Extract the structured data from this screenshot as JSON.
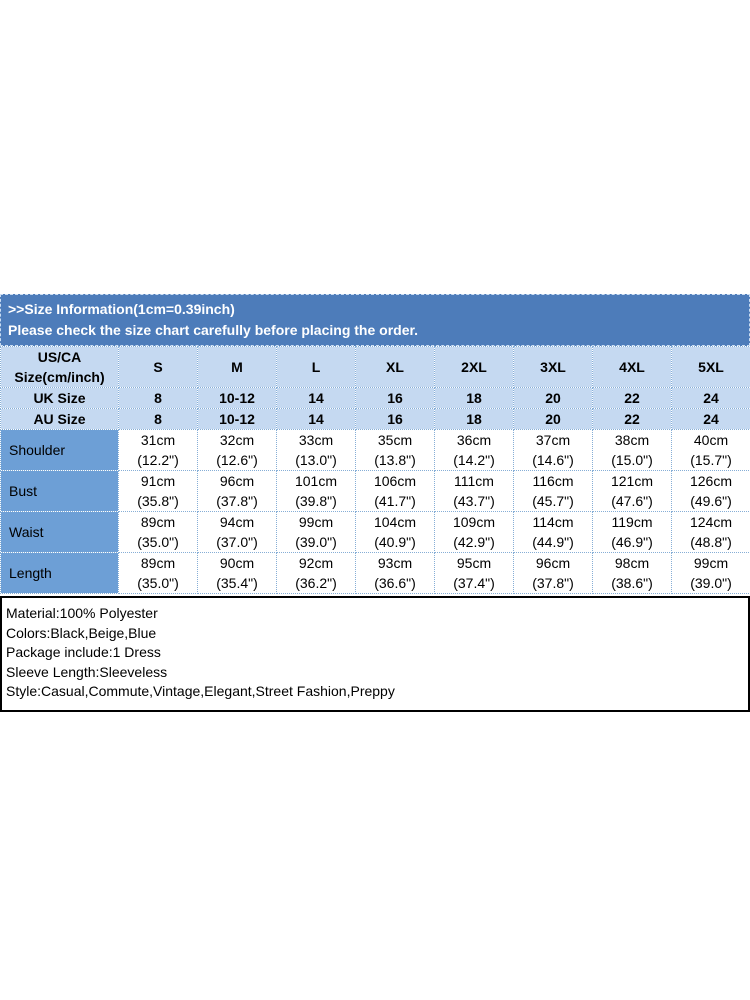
{
  "banner": {
    "line1": ">>Size Information(1cm=0.39inch)",
    "line2": "Please check the size chart carefully before placing the order."
  },
  "size_chart": {
    "corner_label": "US/CA\nSize(cm/inch)",
    "sizes": [
      "S",
      "M",
      "L",
      "XL",
      "2XL",
      "3XL",
      "4XL",
      "5XL"
    ],
    "uk_row": {
      "label": "UK Size",
      "values": [
        "8",
        "10-12",
        "14",
        "16",
        "18",
        "20",
        "22",
        "24"
      ]
    },
    "au_row": {
      "label": "AU Size",
      "values": [
        "8",
        "10-12",
        "14",
        "16",
        "18",
        "20",
        "22",
        "24"
      ]
    },
    "measurements": [
      {
        "label": "Shoulder",
        "values": [
          "31cm\n(12.2\")",
          "32cm\n(12.6\")",
          "33cm\n(13.0\")",
          "35cm\n(13.8\")",
          "36cm\n(14.2\")",
          "37cm\n(14.6\")",
          "38cm\n(15.0\")",
          "40cm\n(15.7\")"
        ]
      },
      {
        "label": "Bust",
        "values": [
          "91cm\n(35.8\")",
          "96cm\n(37.8\")",
          "101cm\n(39.8\")",
          "106cm\n(41.7\")",
          "111cm\n(43.7\")",
          "116cm\n(45.7\")",
          "121cm\n(47.6\")",
          "126cm\n(49.6\")"
        ]
      },
      {
        "label": "Waist",
        "values": [
          "89cm\n(35.0\")",
          "94cm\n(37.0\")",
          "99cm\n(39.0\")",
          "104cm\n(40.9\")",
          "109cm\n(42.9\")",
          "114cm\n(44.9\")",
          "119cm\n(46.9\")",
          "124cm\n(48.8\")"
        ]
      },
      {
        "label": "Length",
        "values": [
          "89cm\n(35.0\")",
          "90cm\n(35.4\")",
          "92cm\n(36.2\")",
          "93cm\n(36.6\")",
          "95cm\n(37.4\")",
          "96cm\n(37.8\")",
          "98cm\n(38.6\")",
          "99cm\n(39.0\")"
        ]
      }
    ]
  },
  "product_info": {
    "lines": [
      "Material:100% Polyester",
      "Colors:Black,Beige,Blue",
      "Package include:1 Dress",
      "Sleeve Length:Sleeveless",
      "Style:Casual,Commute,Vintage,Elegant,Street Fashion,Preppy"
    ]
  },
  "colors": {
    "banner_bg": "#4d7cba",
    "header_bg": "#c5d9f1",
    "row_label_bg": "#6d9fd6",
    "grid_border": "#86aed6",
    "info_border": "#000000"
  }
}
